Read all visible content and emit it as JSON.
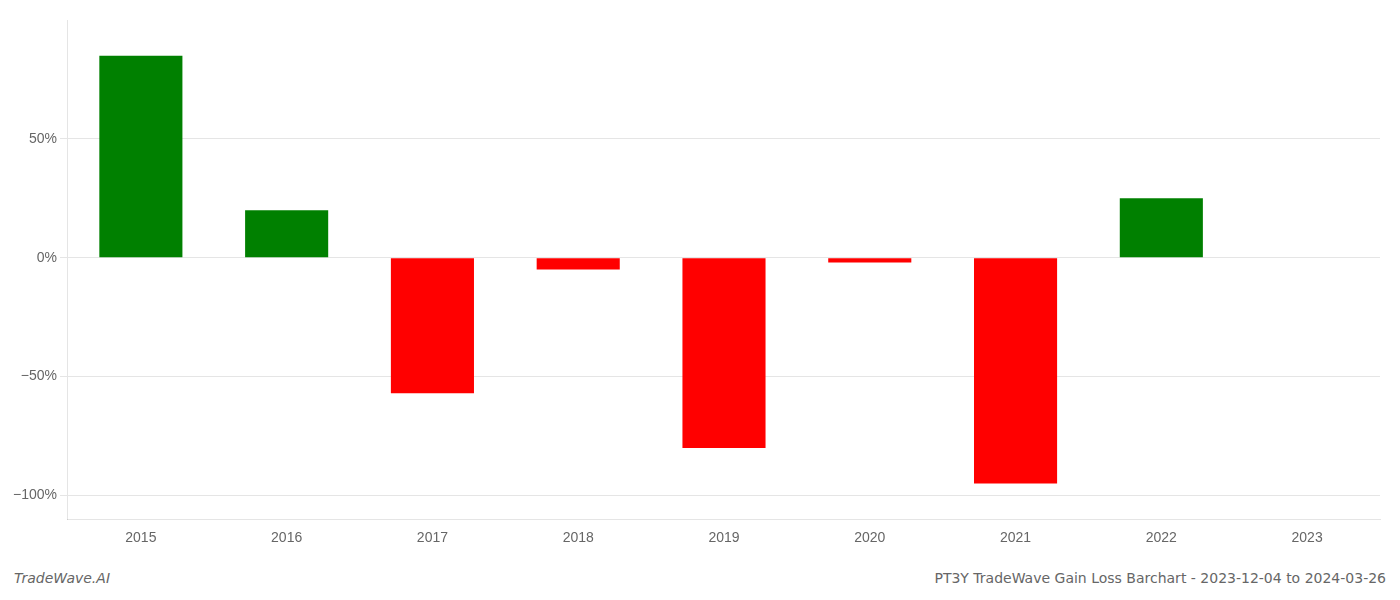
{
  "chart_data": {
    "type": "bar",
    "categories": [
      "2015",
      "2016",
      "2017",
      "2018",
      "2019",
      "2020",
      "2021",
      "2022",
      "2023"
    ],
    "values": [
      85,
      20,
      -57,
      -5,
      -80,
      -2,
      -95,
      25,
      0
    ],
    "colors": [
      "#008000",
      "#008000",
      "#ff0000",
      "#ff0000",
      "#ff0000",
      "#ff0000",
      "#ff0000",
      "#008000",
      "#ffffff"
    ],
    "ylim": [
      -110,
      100
    ],
    "yticks": [
      {
        "value": -100,
        "label": "−100%"
      },
      {
        "value": -50,
        "label": "−50%"
      },
      {
        "value": 0,
        "label": "0%"
      },
      {
        "value": 50,
        "label": "50%"
      }
    ],
    "grid": true,
    "annotations": [
      "TradeWave.AI",
      "PT3Y TradeWave Gain Loss Barchart - 2023-12-04 to 2024-03-26"
    ]
  }
}
